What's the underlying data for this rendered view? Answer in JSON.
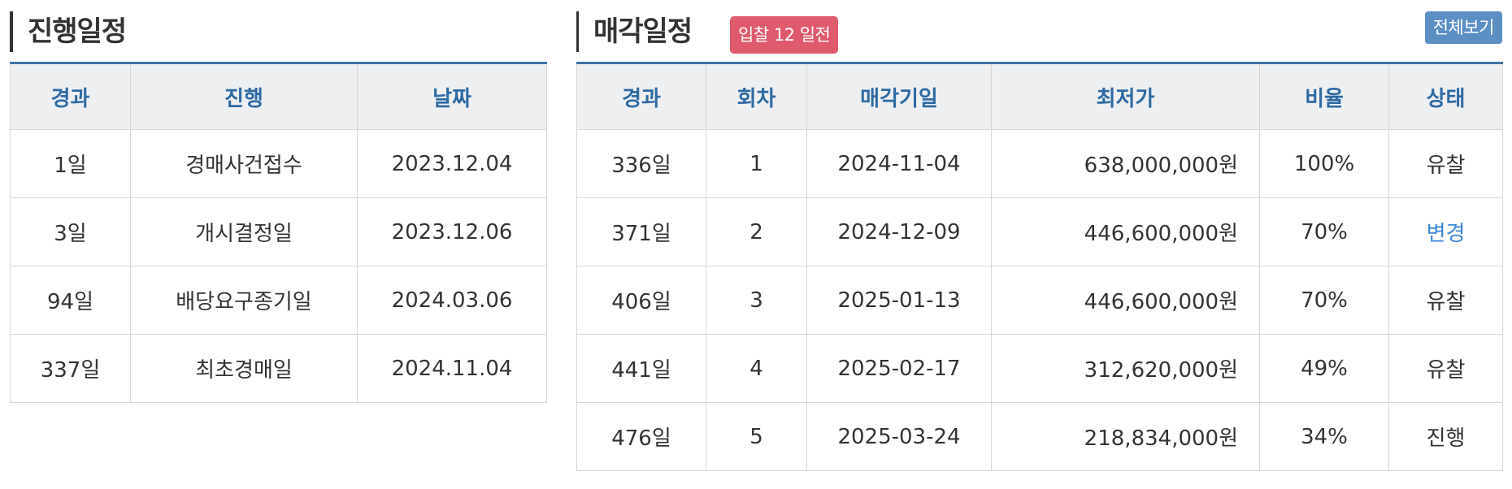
{
  "progress": {
    "title": "진행일정",
    "headers": [
      "경과",
      "진행",
      "날짜"
    ],
    "rows": [
      {
        "elapsed": "1일",
        "event": "경매사건접수",
        "date": "2023.12.04"
      },
      {
        "elapsed": "3일",
        "event": "개시결정일",
        "date": "2023.12.06"
      },
      {
        "elapsed": "94일",
        "event": "배당요구종기일",
        "date": "2024.03.06"
      },
      {
        "elapsed": "337일",
        "event": "최초경매일",
        "date": "2024.11.04"
      }
    ]
  },
  "sale": {
    "title": "매각일정",
    "badge": "입찰 12 일전",
    "view_all_label": "전체보기",
    "headers": [
      "경과",
      "회차",
      "매각기일",
      "최저가",
      "비율",
      "상태"
    ],
    "rows": [
      {
        "elapsed": "336일",
        "round": "1",
        "sale_date": "2024-11-04",
        "min_price": "638,000,000원",
        "ratio": "100%",
        "status": "유찰"
      },
      {
        "elapsed": "371일",
        "round": "2",
        "sale_date": "2024-12-09",
        "min_price": "446,600,000원",
        "ratio": "70%",
        "status": "변경"
      },
      {
        "elapsed": "406일",
        "round": "3",
        "sale_date": "2025-01-13",
        "min_price": "446,600,000원",
        "ratio": "70%",
        "status": "유찰"
      },
      {
        "elapsed": "441일",
        "round": "4",
        "sale_date": "2025-02-17",
        "min_price": "312,620,000원",
        "ratio": "49%",
        "status": "유찰"
      },
      {
        "elapsed": "476일",
        "round": "5",
        "sale_date": "2025-03-24",
        "min_price": "218,834,000원",
        "ratio": "34%",
        "status": "진행"
      }
    ]
  },
  "colors": {
    "accent": "#3f74a8",
    "header_text": "#2e6aa2",
    "badge": "#e05a6e",
    "view_all": "#5b8fc3",
    "status_link": "#3a86d6"
  }
}
